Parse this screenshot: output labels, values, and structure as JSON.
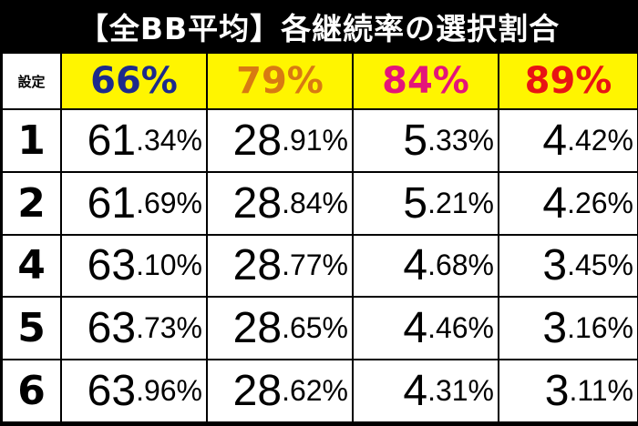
{
  "title": "【全BB平均】各継続率の選択割合",
  "header": {
    "setting_label": "設定",
    "rates": [
      {
        "label": "66%",
        "color": "#1c2a8c"
      },
      {
        "label": "79%",
        "color": "#d87a12"
      },
      {
        "label": "84%",
        "color": "#e4147a"
      },
      {
        "label": "89%",
        "color": "#e81414"
      }
    ]
  },
  "rows": [
    {
      "setting": "1",
      "values": [
        {
          "int": "61",
          "dec": ".34%"
        },
        {
          "int": "28",
          "dec": ".91%"
        },
        {
          "int": "5",
          "dec": ".33%"
        },
        {
          "int": "4",
          "dec": ".42%"
        }
      ]
    },
    {
      "setting": "2",
      "values": [
        {
          "int": "61",
          "dec": ".69%"
        },
        {
          "int": "28",
          "dec": ".84%"
        },
        {
          "int": "5",
          "dec": ".21%"
        },
        {
          "int": "4",
          "dec": ".26%"
        }
      ]
    },
    {
      "setting": "4",
      "values": [
        {
          "int": "63",
          "dec": ".10%"
        },
        {
          "int": "28",
          "dec": ".77%"
        },
        {
          "int": "4",
          "dec": ".68%"
        },
        {
          "int": "3",
          "dec": ".45%"
        }
      ]
    },
    {
      "setting": "5",
      "values": [
        {
          "int": "63",
          "dec": ".73%"
        },
        {
          "int": "28",
          "dec": ".65%"
        },
        {
          "int": "4",
          "dec": ".46%"
        },
        {
          "int": "3",
          "dec": ".16%"
        }
      ]
    },
    {
      "setting": "6",
      "values": [
        {
          "int": "63",
          "dec": ".96%"
        },
        {
          "int": "28",
          "dec": ".62%"
        },
        {
          "int": "4",
          "dec": ".31%"
        },
        {
          "int": "3",
          "dec": ".11%"
        }
      ]
    }
  ]
}
